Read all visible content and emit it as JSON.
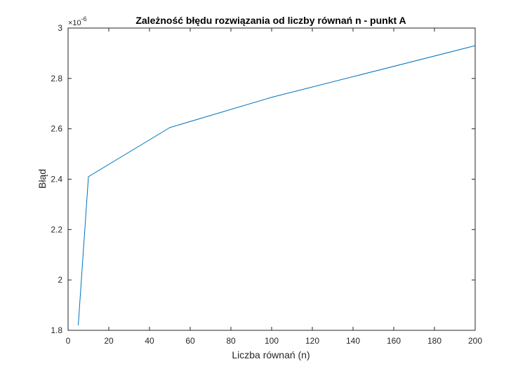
{
  "chart_data": {
    "type": "line",
    "title": "Zależność błędu rozwiązania od liczby równań n - punkt A",
    "xlabel": "Liczba równań (n)",
    "ylabel": "Błąd",
    "xlim": [
      0,
      200
    ],
    "ylim": [
      1.8,
      3.0
    ],
    "y_exponent_base": "×10",
    "y_exponent_power": "-6",
    "x_ticks": [
      0,
      20,
      40,
      60,
      80,
      100,
      120,
      140,
      160,
      180,
      200
    ],
    "x_tick_labels": [
      "0",
      "20",
      "40",
      "60",
      "80",
      "100",
      "120",
      "140",
      "160",
      "180",
      "200"
    ],
    "y_ticks": [
      1.8,
      2.0,
      2.2,
      2.4,
      2.6,
      2.8,
      3.0
    ],
    "y_tick_labels": [
      "1.8",
      "2",
      "2.2",
      "2.4",
      "2.6",
      "2.8",
      "3"
    ],
    "grid": false,
    "series": [
      {
        "x": [
          5,
          10,
          50,
          100,
          200
        ],
        "values": [
          1.82,
          2.41,
          2.605,
          2.725,
          2.93
        ],
        "color": "#0072BD"
      }
    ]
  }
}
